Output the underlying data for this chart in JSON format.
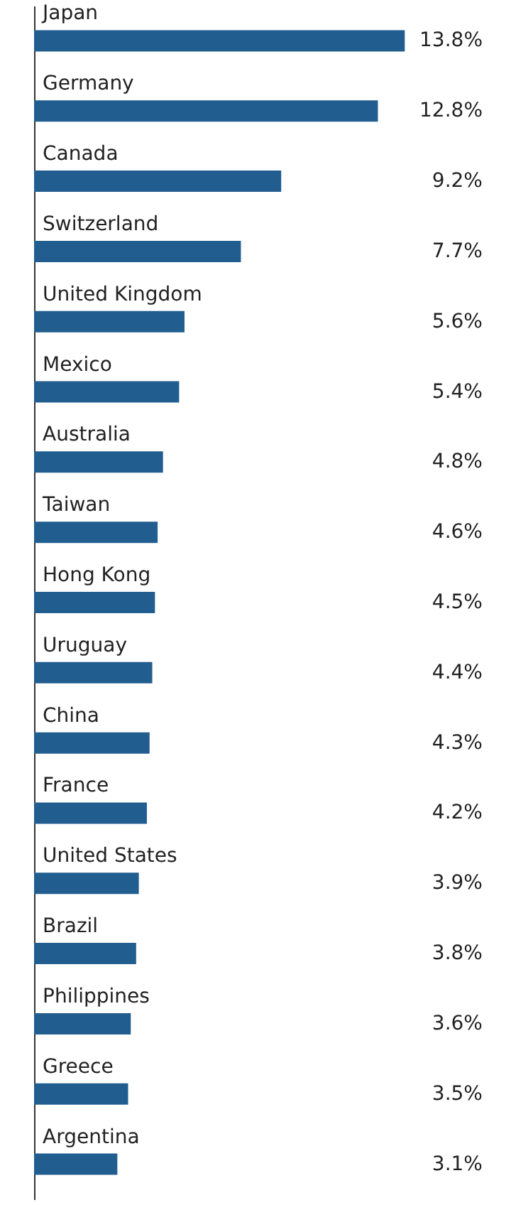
{
  "chart_data": {
    "type": "bar",
    "orientation": "horizontal",
    "categories": [
      "Japan",
      "Germany",
      "Canada",
      "Switzerland",
      "United Kingdom",
      "Mexico",
      "Australia",
      "Taiwan",
      "Hong Kong",
      "Uruguay",
      "China",
      "France",
      "United States",
      "Brazil",
      "Philippines",
      "Greece",
      "Argentina"
    ],
    "values": [
      13.8,
      12.8,
      9.2,
      7.7,
      5.6,
      5.4,
      4.8,
      4.6,
      4.5,
      4.4,
      4.3,
      4.2,
      3.9,
      3.8,
      3.6,
      3.5,
      3.1
    ],
    "value_labels": [
      "13.8%",
      "12.8%",
      "9.2%",
      "7.7%",
      "5.6%",
      "5.4%",
      "4.8%",
      "4.6%",
      "4.5%",
      "4.4%",
      "4.3%",
      "4.2%",
      "3.9%",
      "3.8%",
      "3.6%",
      "3.5%",
      "3.1%"
    ],
    "color": "#215d8f"
  }
}
